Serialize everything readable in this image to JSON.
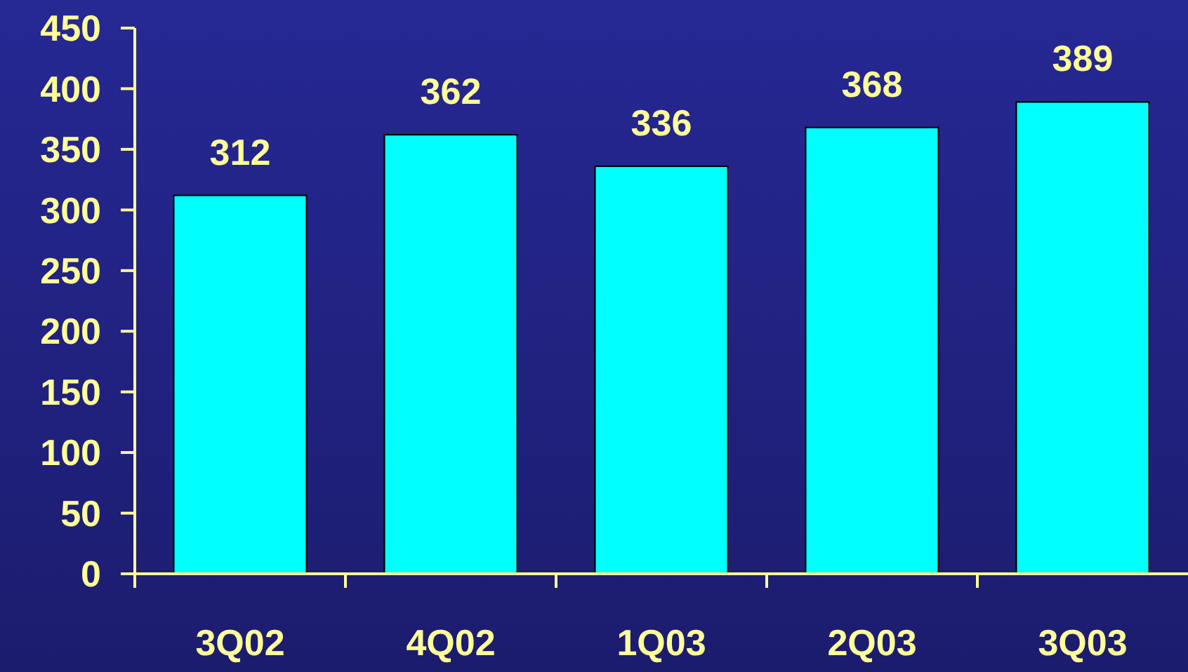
{
  "chart_data": {
    "type": "bar",
    "categories": [
      "3Q02",
      "4Q02",
      "1Q03",
      "2Q03",
      "3Q03"
    ],
    "values": [
      312,
      362,
      336,
      368,
      389
    ],
    "color": "#00ffff",
    "ylim": [
      0,
      450
    ],
    "yticks": [
      0,
      50,
      100,
      150,
      200,
      250,
      300,
      350,
      400,
      450
    ],
    "data_labels": true
  }
}
